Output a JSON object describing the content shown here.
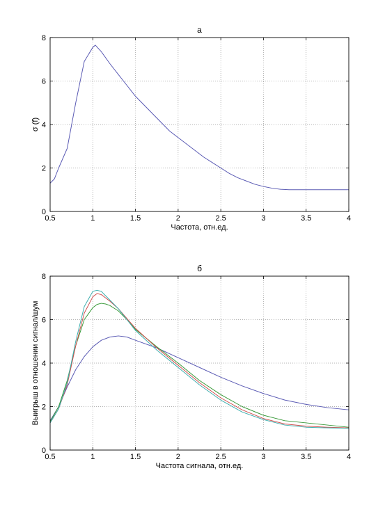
{
  "chart_data": [
    {
      "type": "line",
      "title": "а",
      "xlabel": "Частота, отн.ед.",
      "ylabel": "σ (f)",
      "xlim": [
        0.5,
        4
      ],
      "ylim": [
        0,
        8
      ],
      "xticks": [
        0.5,
        1,
        1.5,
        2,
        2.5,
        3,
        3.5,
        4
      ],
      "yticks": [
        0,
        2,
        4,
        6,
        8
      ],
      "grid": true,
      "legend": "none",
      "series": [
        {
          "color": "#5b5bb4",
          "x": [
            0.5,
            0.55,
            0.6,
            0.7,
            0.8,
            0.9,
            1.0,
            1.03,
            1.1,
            1.2,
            1.3,
            1.4,
            1.5,
            1.6,
            1.7,
            1.8,
            1.9,
            2.0,
            2.1,
            2.2,
            2.3,
            2.4,
            2.5,
            2.6,
            2.7,
            2.8,
            2.9,
            3.0,
            3.1,
            3.2,
            3.3,
            3.4,
            3.5,
            3.6,
            3.8,
            4.0
          ],
          "y": [
            1.3,
            1.5,
            2.0,
            2.9,
            5.0,
            6.9,
            7.55,
            7.65,
            7.35,
            6.8,
            6.3,
            5.8,
            5.3,
            4.9,
            4.5,
            4.1,
            3.7,
            3.4,
            3.1,
            2.8,
            2.5,
            2.25,
            2.0,
            1.75,
            1.55,
            1.4,
            1.25,
            1.15,
            1.07,
            1.02,
            1.0,
            1.0,
            1.0,
            1.0,
            1.0,
            1.0
          ]
        }
      ]
    },
    {
      "type": "line",
      "title": "б",
      "xlabel": "Частота сигнала, отн.ед.",
      "ylabel": "Выигрыш в отношении сигнал/шум",
      "xlim": [
        0.5,
        4
      ],
      "ylim": [
        0,
        8
      ],
      "xticks": [
        0.5,
        1,
        1.5,
        2,
        2.5,
        3,
        3.5,
        4
      ],
      "yticks": [
        0,
        2,
        4,
        6,
        8
      ],
      "grid": true,
      "legend": "none",
      "series": [
        {
          "color": "#5b5bb4",
          "x": [
            0.5,
            0.6,
            0.7,
            0.8,
            0.9,
            1.0,
            1.1,
            1.2,
            1.3,
            1.4,
            1.5,
            1.75,
            2.0,
            2.25,
            2.5,
            2.75,
            3.0,
            3.25,
            3.5,
            3.75,
            4.0
          ],
          "y": [
            1.35,
            2.0,
            2.9,
            3.7,
            4.3,
            4.75,
            5.05,
            5.2,
            5.25,
            5.2,
            5.05,
            4.7,
            4.25,
            3.8,
            3.35,
            2.95,
            2.6,
            2.3,
            2.1,
            1.95,
            1.85
          ]
        },
        {
          "color": "#3a9a3a",
          "x": [
            0.5,
            0.6,
            0.7,
            0.8,
            0.9,
            1.0,
            1.05,
            1.1,
            1.15,
            1.2,
            1.3,
            1.4,
            1.5,
            1.75,
            2.0,
            2.25,
            2.5,
            2.75,
            3.0,
            3.25,
            3.5,
            3.75,
            4.0
          ],
          "y": [
            1.3,
            2.0,
            3.2,
            4.8,
            6.0,
            6.55,
            6.7,
            6.75,
            6.72,
            6.65,
            6.4,
            6.0,
            5.55,
            4.75,
            4.0,
            3.2,
            2.55,
            2.0,
            1.6,
            1.35,
            1.25,
            1.15,
            1.05
          ]
        },
        {
          "color": "#d05050",
          "x": [
            0.5,
            0.6,
            0.7,
            0.8,
            0.9,
            1.0,
            1.05,
            1.1,
            1.15,
            1.2,
            1.3,
            1.4,
            1.5,
            1.75,
            2.0,
            2.25,
            2.5,
            2.75,
            3.0,
            3.25,
            3.5,
            3.75,
            4.0
          ],
          "y": [
            1.25,
            1.9,
            3.0,
            4.8,
            6.3,
            7.05,
            7.2,
            7.15,
            7.0,
            6.85,
            6.5,
            6.05,
            5.6,
            4.7,
            3.9,
            3.1,
            2.4,
            1.85,
            1.45,
            1.2,
            1.1,
            1.05,
            1.02
          ]
        },
        {
          "color": "#40b0b0",
          "x": [
            0.5,
            0.6,
            0.7,
            0.8,
            0.9,
            1.0,
            1.05,
            1.1,
            1.15,
            1.2,
            1.3,
            1.4,
            1.5,
            1.75,
            2.0,
            2.25,
            2.5,
            2.75,
            3.0,
            3.25,
            3.5,
            3.75,
            4.0
          ],
          "y": [
            1.25,
            1.9,
            3.1,
            5.0,
            6.6,
            7.3,
            7.35,
            7.3,
            7.1,
            6.9,
            6.5,
            6.0,
            5.5,
            4.6,
            3.8,
            3.0,
            2.3,
            1.75,
            1.4,
            1.15,
            1.05,
            1.02,
            1.0
          ]
        }
      ]
    }
  ]
}
